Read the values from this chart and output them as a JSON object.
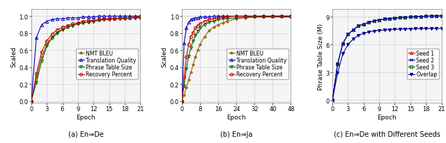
{
  "panel_a": {
    "caption": "(a) En⇒De",
    "xlabel": "Epoch",
    "ylabel": "Scaled",
    "xlim": [
      0,
      21
    ],
    "ylim": [
      -0.02,
      1.08
    ],
    "xticks": [
      0,
      3,
      6,
      9,
      12,
      15,
      18,
      21
    ],
    "yticks": [
      0.0,
      0.2,
      0.4,
      0.6,
      0.8,
      1.0
    ],
    "series": {
      "NMT BLEU": {
        "color": "#8B6508",
        "marker": "*",
        "linestyle": "-"
      },
      "Translation Quality": {
        "color": "#0000CC",
        "marker": "^",
        "linestyle": "-"
      },
      "Phrase Table Size": {
        "color": "#006400",
        "marker": "v",
        "linestyle": "-"
      },
      "Recovery Percent": {
        "color": "#CC0000",
        "marker": "o",
        "linestyle": "-"
      }
    },
    "epochs": [
      0,
      1,
      2,
      3,
      4,
      5,
      6,
      7,
      8,
      9,
      10,
      11,
      12,
      13,
      14,
      15,
      16,
      17,
      18,
      19,
      20,
      21
    ],
    "nmt_bleu": [
      0.0,
      0.28,
      0.52,
      0.67,
      0.76,
      0.81,
      0.85,
      0.87,
      0.89,
      0.91,
      0.92,
      0.93,
      0.94,
      0.95,
      0.96,
      0.96,
      0.97,
      0.97,
      0.98,
      0.98,
      0.98,
      0.99
    ],
    "trans_qual": [
      0.0,
      0.75,
      0.9,
      0.94,
      0.96,
      0.97,
      0.97,
      0.98,
      0.98,
      0.98,
      0.99,
      0.99,
      0.99,
      1.0,
      1.0,
      1.0,
      1.0,
      1.0,
      1.0,
      1.0,
      1.0,
      1.0
    ],
    "phrase_size": [
      0.0,
      0.22,
      0.47,
      0.65,
      0.74,
      0.8,
      0.84,
      0.87,
      0.89,
      0.91,
      0.92,
      0.93,
      0.94,
      0.95,
      0.96,
      0.96,
      0.97,
      0.97,
      0.97,
      0.98,
      0.98,
      0.98
    ],
    "recovery": [
      0.0,
      0.32,
      0.58,
      0.71,
      0.79,
      0.84,
      0.87,
      0.89,
      0.91,
      0.92,
      0.94,
      0.95,
      0.95,
      0.96,
      0.97,
      0.97,
      0.97,
      0.98,
      0.98,
      0.98,
      0.99,
      0.99
    ]
  },
  "panel_b": {
    "caption": "(b) En⇒Ja",
    "xlabel": "Epoch",
    "ylabel": "Scaled",
    "xlim": [
      0,
      48
    ],
    "ylim": [
      -0.02,
      1.08
    ],
    "xticks": [
      0,
      8,
      16,
      24,
      32,
      40,
      48
    ],
    "yticks": [
      0.0,
      0.2,
      0.4,
      0.6,
      0.8,
      1.0
    ],
    "series": {
      "NMT BLEU": {
        "color": "#8B6508",
        "marker": "*",
        "linestyle": "-"
      },
      "Translation Quality": {
        "color": "#0000CC",
        "marker": "^",
        "linestyle": "-"
      },
      "Phrase Table Size": {
        "color": "#006400",
        "marker": "v",
        "linestyle": "-"
      },
      "Recovery Percent": {
        "color": "#CC0000",
        "marker": "o",
        "linestyle": "-"
      }
    },
    "epochs": [
      0,
      1,
      2,
      3,
      4,
      5,
      6,
      7,
      8,
      10,
      12,
      14,
      16,
      18,
      20,
      24,
      28,
      32,
      36,
      40,
      44,
      48
    ],
    "nmt_bleu": [
      0.0,
      0.07,
      0.16,
      0.25,
      0.34,
      0.43,
      0.52,
      0.6,
      0.67,
      0.76,
      0.83,
      0.87,
      0.9,
      0.92,
      0.94,
      0.97,
      0.98,
      0.99,
      0.99,
      1.0,
      1.0,
      1.0
    ],
    "trans_qual": [
      0.0,
      0.68,
      0.86,
      0.93,
      0.96,
      0.97,
      0.98,
      0.98,
      0.99,
      0.99,
      0.99,
      1.0,
      1.0,
      1.0,
      1.0,
      1.0,
      1.0,
      1.0,
      1.0,
      1.0,
      1.0,
      1.0
    ],
    "phrase_size": [
      0.0,
      0.18,
      0.38,
      0.53,
      0.63,
      0.71,
      0.77,
      0.82,
      0.86,
      0.9,
      0.93,
      0.94,
      0.96,
      0.97,
      0.97,
      0.98,
      0.99,
      0.99,
      0.99,
      0.99,
      0.99,
      0.99
    ],
    "recovery": [
      0.0,
      0.28,
      0.52,
      0.67,
      0.76,
      0.81,
      0.86,
      0.89,
      0.91,
      0.94,
      0.96,
      0.97,
      0.98,
      0.99,
      0.99,
      1.0,
      1.0,
      1.0,
      1.0,
      1.0,
      1.0,
      1.0
    ]
  },
  "panel_c": {
    "caption": "(c) En⇒De with Different Seeds",
    "xlabel": "Epoch",
    "ylabel": "Phrase Table Size (M)",
    "xlim": [
      0,
      21
    ],
    "ylim": [
      -0.3,
      9.8
    ],
    "xticks": [
      0,
      3,
      6,
      9,
      12,
      15,
      18,
      21
    ],
    "yticks": [
      0,
      3,
      6,
      9
    ],
    "series": {
      "Seed 1": {
        "color": "#CC0000",
        "marker": "^"
      },
      "Seed 2": {
        "color": "#0000CC",
        "marker": "x"
      },
      "Seed 3": {
        "color": "#006400",
        "marker": "s"
      },
      "Overlap": {
        "color": "#00008B",
        "marker": "v"
      }
    },
    "epochs": [
      0,
      1,
      2,
      3,
      4,
      5,
      6,
      7,
      8,
      9,
      10,
      11,
      12,
      13,
      14,
      15,
      16,
      17,
      18,
      19,
      20,
      21
    ],
    "seed1": [
      0.0,
      3.9,
      6.1,
      7.1,
      7.6,
      8.0,
      8.2,
      8.4,
      8.55,
      8.65,
      8.75,
      8.8,
      8.85,
      8.9,
      8.95,
      8.98,
      9.0,
      9.02,
      9.05,
      9.07,
      9.08,
      9.1
    ],
    "seed2": [
      0.0,
      3.9,
      6.1,
      7.1,
      7.6,
      8.0,
      8.2,
      8.4,
      8.55,
      8.65,
      8.75,
      8.8,
      8.85,
      8.9,
      8.95,
      8.98,
      9.0,
      9.02,
      9.05,
      9.07,
      9.08,
      9.1
    ],
    "seed3": [
      0.0,
      3.9,
      6.1,
      7.1,
      7.6,
      8.0,
      8.2,
      8.4,
      8.55,
      8.65,
      8.75,
      8.8,
      8.85,
      8.9,
      8.95,
      8.98,
      9.0,
      9.02,
      9.05,
      9.07,
      9.08,
      9.1
    ],
    "overlap": [
      0.0,
      2.9,
      5.0,
      6.0,
      6.6,
      7.0,
      7.2,
      7.35,
      7.45,
      7.52,
      7.57,
      7.61,
      7.64,
      7.66,
      7.68,
      7.69,
      7.7,
      7.71,
      7.72,
      7.72,
      7.73,
      7.73
    ]
  },
  "bg_color": "#f5f5f5",
  "grid_color": "#d0d0d0",
  "legend_fontsize": 5.5,
  "axis_fontsize": 6.5,
  "tick_fontsize": 6.0,
  "caption_fontsize": 7.0,
  "linewidth": 0.8,
  "markersize": 3.0,
  "markeredgewidth": 0.7
}
